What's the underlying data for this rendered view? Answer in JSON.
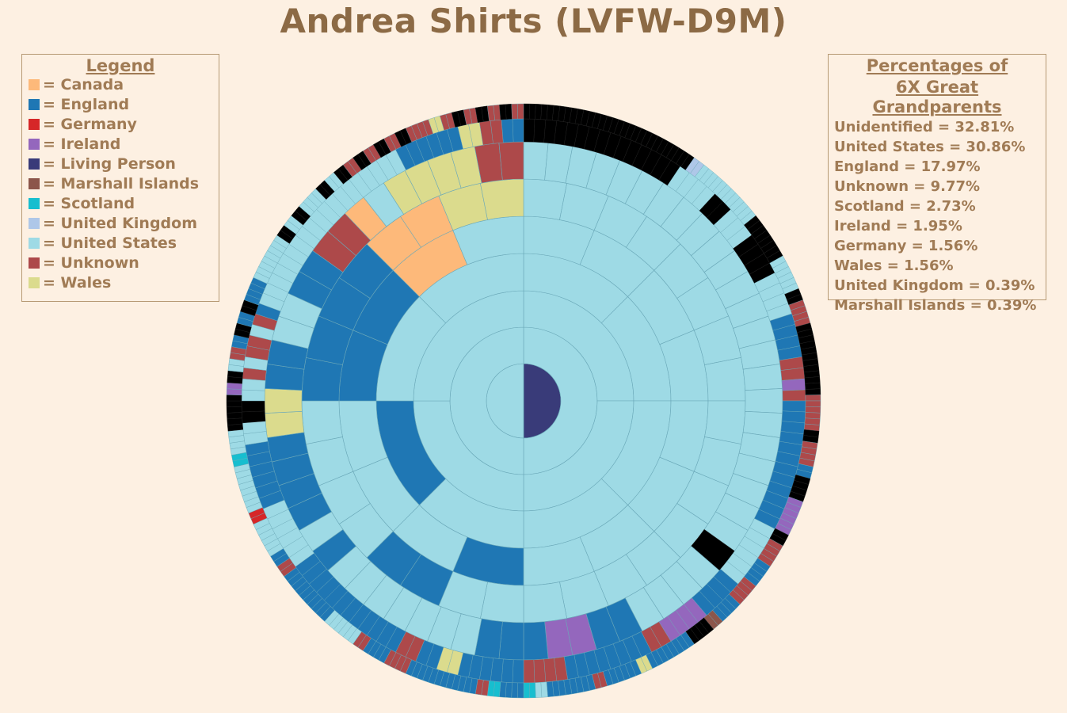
{
  "title": "Andrea Shirts (LVFW-D9M)",
  "legend": {
    "title": "Legend",
    "items": [
      {
        "label": "= Canada",
        "color": "#fdb97a"
      },
      {
        "label": "= England",
        "color": "#1f77b4"
      },
      {
        "label": "= Germany",
        "color": "#d62728"
      },
      {
        "label": "= Ireland",
        "color": "#9467bd"
      },
      {
        "label": "= Living Person",
        "color": "#393b79"
      },
      {
        "label": "= Marshall Islands",
        "color": "#8c564b"
      },
      {
        "label": "= Scotland",
        "color": "#17becf"
      },
      {
        "label": "= United Kingdom",
        "color": "#aec7e8"
      },
      {
        "label": "= United States",
        "color": "#9edae5"
      },
      {
        "label": "= Unknown",
        "color": "#ad494a"
      },
      {
        "label": "= Wales",
        "color": "#dbdb8d"
      }
    ]
  },
  "percentages": {
    "title_line1": "Percentages of",
    "title_line2": "6X Great Grandparents",
    "items": [
      "Unidentified = 32.81%",
      "United States = 30.86%",
      "England = 17.97%",
      "Unknown = 9.77%",
      "Scotland = 2.73%",
      "Ireland = 1.95%",
      "Germany = 1.56%",
      "Wales = 1.56%",
      "United Kingdom = 0.39%",
      "Marshall Islands = 0.39%"
    ]
  },
  "chart_data": {
    "type": "fan",
    "start_angle_deg": 0,
    "unidentified_color": "#000000",
    "color_key": {
      "C": "#fdb97a",
      "E": "#1f77b4",
      "G": "#d62728",
      "I": "#9467bd",
      "L": "#393b79",
      "M": "#8c564b",
      "S": "#17becf",
      "K": "#aec7e8",
      "U": "#9edae5",
      "N": "#ad494a",
      "W": "#dbdb8d",
      "X": "#000000"
    },
    "generations": [
      "LU",
      "UU",
      "UUUU",
      "UUUUUEUU",
      "UUUUUUUUEUUUEECU",
      "UUUUUUUUUUUUUUUUUUEEUUUUEEEECCWW",
      "UUUUUUUUUUUUUUUUUUUUUUUXUUUUEEIIEEEUUUUUUUEUEEEEWWEEUUEENNCUWWWWNN",
      "XXXXXXXXXXXXXXXUUUUXXUUUXXXXUUUUEEEENNINEEEEEEEEEEEEUUUUUUEEEEIIIINNEEEEEEEENNNNEEEEEEWWEENNEEEEEEEEEEEEUUUUUUEEEEEEUUXXUUNUNNUNEUUUUUUUUUUUUUUUUUUUEEEEEEWWNNEE",
      "XXXXXXXXXXXXXXXXXXXXXXXXXXXXXXKKUUUUUUUUUUUUXXXXXXXXUUUUUUXXNNNNXXXXXXXXXXXXNNNNNNXXNNNNEEXXXXIIIIIIXXNNNNEEEENNNNEEEEMMXXXXEEEEEEEEWWEEEEEENNEEEEEEEEUUSSEEEESSNNEEEEEEEEEEEENNNNEEEENNUUUUUUEEEEEEEEEENNEEUUUUUUGGUUUUUUUUSSUUUUXXXXXXIIXXUUNNEEXXEEXXEEEEUUUUUUUUXXUUXXUUUUXXUUXXNNXXNNXXNNXXNNNNWWNNXXNNXXNNXXNN"
    ]
  }
}
